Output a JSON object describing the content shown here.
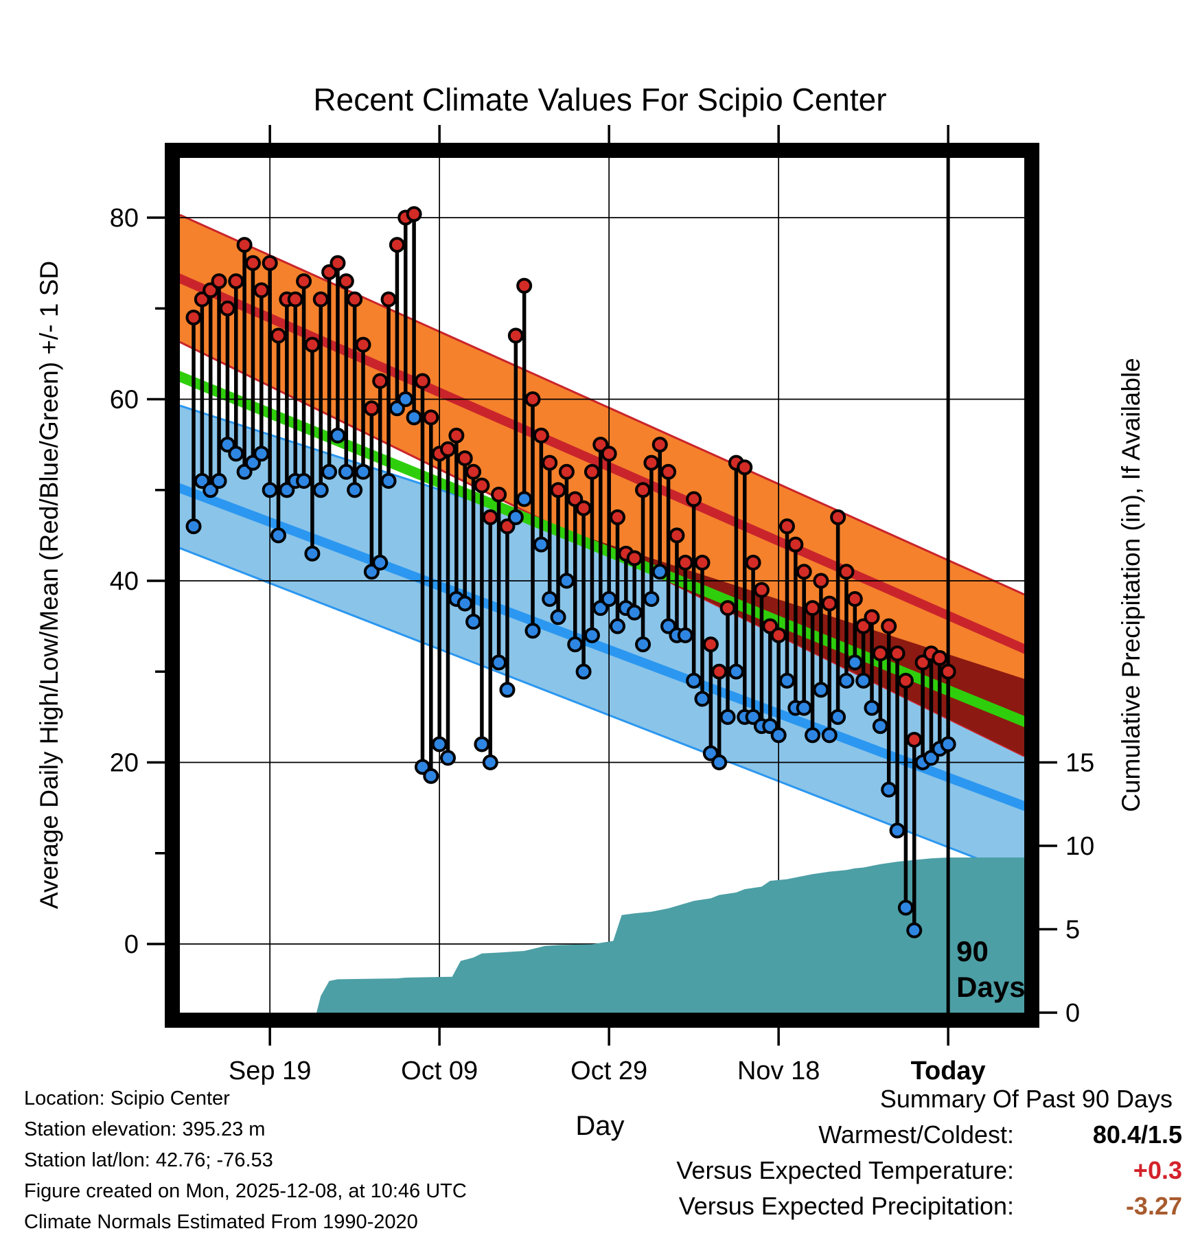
{
  "title": "Recent Climate Values For Scipio Center",
  "colors": {
    "orange_band": "#F5812C",
    "crimson_line": "#C9242B",
    "maroon_overlap": "#8C1A12",
    "green_line": "#2FCE0C",
    "lightblue_band": "#8AC4E9",
    "blue_line": "#2B97F0",
    "teal_precip": "#4C9FA5",
    "dot_high": "#D32B26",
    "dot_low": "#2E86E2",
    "stem": "#000000",
    "frame": "#000000",
    "summary_temp_value": "#D3222A",
    "summary_precip_value": "#A85B2E"
  },
  "chart_data": {
    "type": "line",
    "subtype": "daily-high-low-stems-with-climatology-bands-and-cumulative-precip",
    "title": "Recent Climate Values For Scipio Center",
    "xlabel": "Day",
    "x_ticks": [
      {
        "day": 10,
        "label": "Sep 19",
        "bold": false
      },
      {
        "day": 30,
        "label": "Oct 09",
        "bold": false
      },
      {
        "day": 50,
        "label": "Oct 29",
        "bold": false
      },
      {
        "day": 70,
        "label": "Nov 18",
        "bold": false
      },
      {
        "day": 90,
        "label": "Today",
        "bold": true
      }
    ],
    "y_temp": {
      "label": "Average Daily High/Low/Mean (Red/Blue/Green) +/- 1 SD",
      "major_ticks": [
        0,
        20,
        40,
        60,
        80
      ],
      "minor_ticks": [
        10,
        30,
        50,
        70
      ],
      "top_value": 86.6,
      "bottom_value": -7.6
    },
    "y_precip": {
      "label": "Cumulative Precipitation (in), If Available",
      "major_ticks": [
        0,
        5,
        10,
        15
      ]
    },
    "annotation_90days": {
      "line_day": 90,
      "lines": [
        "90",
        "Days"
      ]
    },
    "dates": [
      "Sep 10",
      "Sep 11",
      "Sep 12",
      "Sep 13",
      "Sep 14",
      "Sep 15",
      "Sep 16",
      "Sep 17",
      "Sep 18",
      "Sep 19",
      "Sep 20",
      "Sep 21",
      "Sep 22",
      "Sep 23",
      "Sep 24",
      "Sep 25",
      "Sep 26",
      "Sep 27",
      "Sep 28",
      "Sep 29",
      "Sep 30",
      "Oct 01",
      "Oct 02",
      "Oct 03",
      "Oct 04",
      "Oct 05",
      "Oct 06",
      "Oct 07",
      "Oct 08",
      "Oct 09",
      "Oct 10",
      "Oct 11",
      "Oct 12",
      "Oct 13",
      "Oct 14",
      "Oct 15",
      "Oct 16",
      "Oct 17",
      "Oct 18",
      "Oct 19",
      "Oct 20",
      "Oct 21",
      "Oct 22",
      "Oct 23",
      "Oct 24",
      "Oct 25",
      "Oct 26",
      "Oct 27",
      "Oct 28",
      "Oct 29",
      "Oct 30",
      "Oct 31",
      "Nov 01",
      "Nov 02",
      "Nov 03",
      "Nov 04",
      "Nov 05",
      "Nov 06",
      "Nov 07",
      "Nov 08",
      "Nov 09",
      "Nov 10",
      "Nov 11",
      "Nov 12",
      "Nov 13",
      "Nov 14",
      "Nov 15",
      "Nov 16",
      "Nov 17",
      "Nov 18",
      "Nov 19",
      "Nov 20",
      "Nov 21",
      "Nov 22",
      "Nov 23",
      "Nov 24",
      "Nov 25",
      "Nov 26",
      "Nov 27",
      "Nov 28",
      "Nov 29",
      "Nov 30",
      "Dec 01",
      "Dec 02",
      "Dec 03",
      "Dec 04",
      "Dec 05",
      "Dec 06",
      "Dec 07",
      "Dec 08"
    ],
    "daily_high": [
      69,
      71,
      72,
      73,
      70,
      73,
      77,
      75,
      72,
      75,
      67,
      71,
      71,
      73,
      66,
      71,
      74,
      75,
      73,
      71,
      66,
      59,
      62,
      71,
      77,
      80,
      80.4,
      62,
      58,
      54,
      54.5,
      56,
      53.5,
      52,
      50.5,
      47,
      49.5,
      46,
      67,
      72.5,
      60,
      56,
      53,
      50,
      52,
      49,
      48,
      52,
      55,
      54,
      47,
      43,
      42.5,
      50,
      53,
      55,
      52,
      45,
      42,
      49,
      42,
      33,
      30,
      37,
      53,
      52.5,
      42,
      39,
      35,
      34,
      46,
      44,
      41,
      37,
      40,
      37.5,
      47,
      41,
      38,
      35,
      36,
      32,
      35,
      32,
      29,
      22.5,
      31,
      32,
      31.5,
      30
    ],
    "daily_low": [
      46,
      51,
      50,
      51,
      55,
      54,
      52,
      53,
      54,
      50,
      45,
      50,
      51,
      51,
      43,
      50,
      52,
      56,
      52,
      50,
      52,
      41,
      42,
      51,
      59,
      60,
      58,
      19.5,
      18.5,
      22,
      20.5,
      38,
      37.5,
      35.5,
      22,
      20,
      31,
      28,
      47,
      49,
      34.5,
      44,
      38,
      36,
      40,
      33,
      30,
      34,
      37,
      38,
      35,
      37,
      36.5,
      33,
      38,
      41,
      35,
      34,
      34,
      29,
      27,
      21,
      20,
      25,
      30,
      25,
      25,
      24,
      24,
      23,
      29,
      26,
      26,
      23,
      28,
      23,
      25,
      29,
      31,
      29,
      26,
      24,
      17,
      12.5,
      4,
      1.5,
      20,
      20.5,
      21.5,
      22
    ],
    "climatology_trend_left_to_right_edge": {
      "avg_high_plus_sd": [
        80.3,
        38.5
      ],
      "avg_high": [
        73.3,
        32.5
      ],
      "avg_high_minus_sd": [
        66.3,
        20.7
      ],
      "mean": [
        62.5,
        24.5
      ],
      "avg_low_plus_sd": [
        59.3,
        29.2
      ],
      "avg_low": [
        50.2,
        15.2
      ],
      "avg_low_minus_sd": [
        43.6,
        7.4
      ]
    },
    "cumulative_precip_in": [
      [
        15.5,
        0
      ],
      [
        16,
        1.0
      ],
      [
        17,
        1.9
      ],
      [
        18,
        2.0
      ],
      [
        25,
        2.05
      ],
      [
        26,
        2.1
      ],
      [
        31.5,
        2.15
      ],
      [
        32.5,
        3.1
      ],
      [
        34,
        3.3
      ],
      [
        35,
        3.55
      ],
      [
        37,
        3.6
      ],
      [
        40,
        3.7
      ],
      [
        42.5,
        4.0
      ],
      [
        44,
        4.05
      ],
      [
        48,
        4.1
      ],
      [
        50.5,
        4.3
      ],
      [
        51.5,
        5.85
      ],
      [
        53,
        5.95
      ],
      [
        55,
        6.05
      ],
      [
        57,
        6.25
      ],
      [
        59,
        6.55
      ],
      [
        60,
        6.7
      ],
      [
        62,
        6.85
      ],
      [
        63,
        7.05
      ],
      [
        65,
        7.2
      ],
      [
        66,
        7.4
      ],
      [
        68,
        7.55
      ],
      [
        69,
        7.9
      ],
      [
        71,
        8.0
      ],
      [
        72,
        8.1
      ],
      [
        74,
        8.3
      ],
      [
        76,
        8.45
      ],
      [
        78,
        8.55
      ],
      [
        79,
        8.65
      ],
      [
        80,
        8.7
      ],
      [
        82,
        8.9
      ],
      [
        84,
        9.05
      ],
      [
        86,
        9.15
      ],
      [
        88,
        9.25
      ],
      [
        90,
        9.3
      ],
      [
        98.5,
        9.3
      ]
    ]
  },
  "footer": {
    "lines": [
      "Location: Scipio Center",
      "Station elevation: 395.23 m",
      "Station lat/lon: 42.76; -76.53",
      "Figure created on Mon, 2025-12-08, at 10:46 UTC",
      "Climate Normals Estimated From 1990-2020"
    ]
  },
  "summary": {
    "title": "Summary Of Past 90 Days",
    "rows": [
      {
        "label": "Warmest/Coldest:",
        "value": "80.4/1.5",
        "value_color": "#000000"
      },
      {
        "label": "Versus Expected Temperature:",
        "value": "+0.3",
        "value_color": "#D3222A"
      },
      {
        "label": "Versus Expected Precipitation:",
        "value": "-3.27",
        "value_color": "#A85B2E"
      }
    ]
  }
}
